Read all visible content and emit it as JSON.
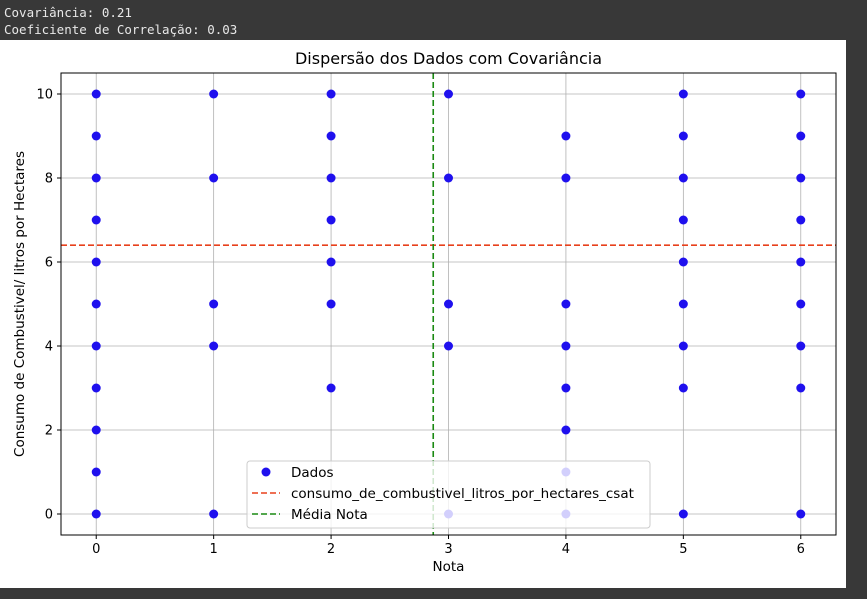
{
  "output": {
    "line1": "Covariância: 0.21",
    "line2": "Coeficiente de Correlação: 0.03"
  },
  "chart_data": {
    "type": "scatter",
    "title": "Dispersão dos Dados com Covariância",
    "xlabel": "Nota",
    "ylabel": "Consumo de Combustivel/ litros por Hectares",
    "xlim": [
      -0.3,
      6.3
    ],
    "ylim": [
      -0.5,
      10.5
    ],
    "xticks": [
      0,
      1,
      2,
      3,
      4,
      5,
      6
    ],
    "yticks": [
      0,
      2,
      4,
      6,
      8,
      10
    ],
    "grid": true,
    "legend_position": "lower center",
    "series": [
      {
        "name": "Dados",
        "type": "scatter",
        "color": "#1f10ee",
        "points": [
          [
            0,
            0
          ],
          [
            0,
            1
          ],
          [
            0,
            2
          ],
          [
            0,
            3
          ],
          [
            0,
            4
          ],
          [
            0,
            5
          ],
          [
            0,
            6
          ],
          [
            0,
            7
          ],
          [
            0,
            8
          ],
          [
            0,
            9
          ],
          [
            0,
            10
          ],
          [
            1,
            0
          ],
          [
            1,
            4
          ],
          [
            1,
            5
          ],
          [
            1,
            8
          ],
          [
            1,
            10
          ],
          [
            2,
            3
          ],
          [
            2,
            5
          ],
          [
            2,
            6
          ],
          [
            2,
            7
          ],
          [
            2,
            8
          ],
          [
            2,
            9
          ],
          [
            2,
            10
          ],
          [
            3,
            0
          ],
          [
            3,
            4
          ],
          [
            3,
            5
          ],
          [
            3,
            8
          ],
          [
            3,
            10
          ],
          [
            4,
            0
          ],
          [
            4,
            1
          ],
          [
            4,
            2
          ],
          [
            4,
            3
          ],
          [
            4,
            4
          ],
          [
            4,
            5
          ],
          [
            4,
            8
          ],
          [
            4,
            9
          ],
          [
            5,
            0
          ],
          [
            5,
            3
          ],
          [
            5,
            4
          ],
          [
            5,
            5
          ],
          [
            5,
            6
          ],
          [
            5,
            7
          ],
          [
            5,
            8
          ],
          [
            5,
            9
          ],
          [
            5,
            10
          ],
          [
            6,
            0
          ],
          [
            6,
            3
          ],
          [
            6,
            4
          ],
          [
            6,
            5
          ],
          [
            6,
            6
          ],
          [
            6,
            7
          ],
          [
            6,
            8
          ],
          [
            6,
            9
          ],
          [
            6,
            10
          ]
        ]
      },
      {
        "name": "consumo_de_combustivel_litros_por_hectares_csat",
        "type": "hline",
        "y": 6.4,
        "color": "#e8401c",
        "style": "dashed"
      },
      {
        "name": "Média Nota",
        "type": "vline",
        "x": 2.87,
        "color": "#1a8a12",
        "style": "dashed"
      }
    ]
  }
}
